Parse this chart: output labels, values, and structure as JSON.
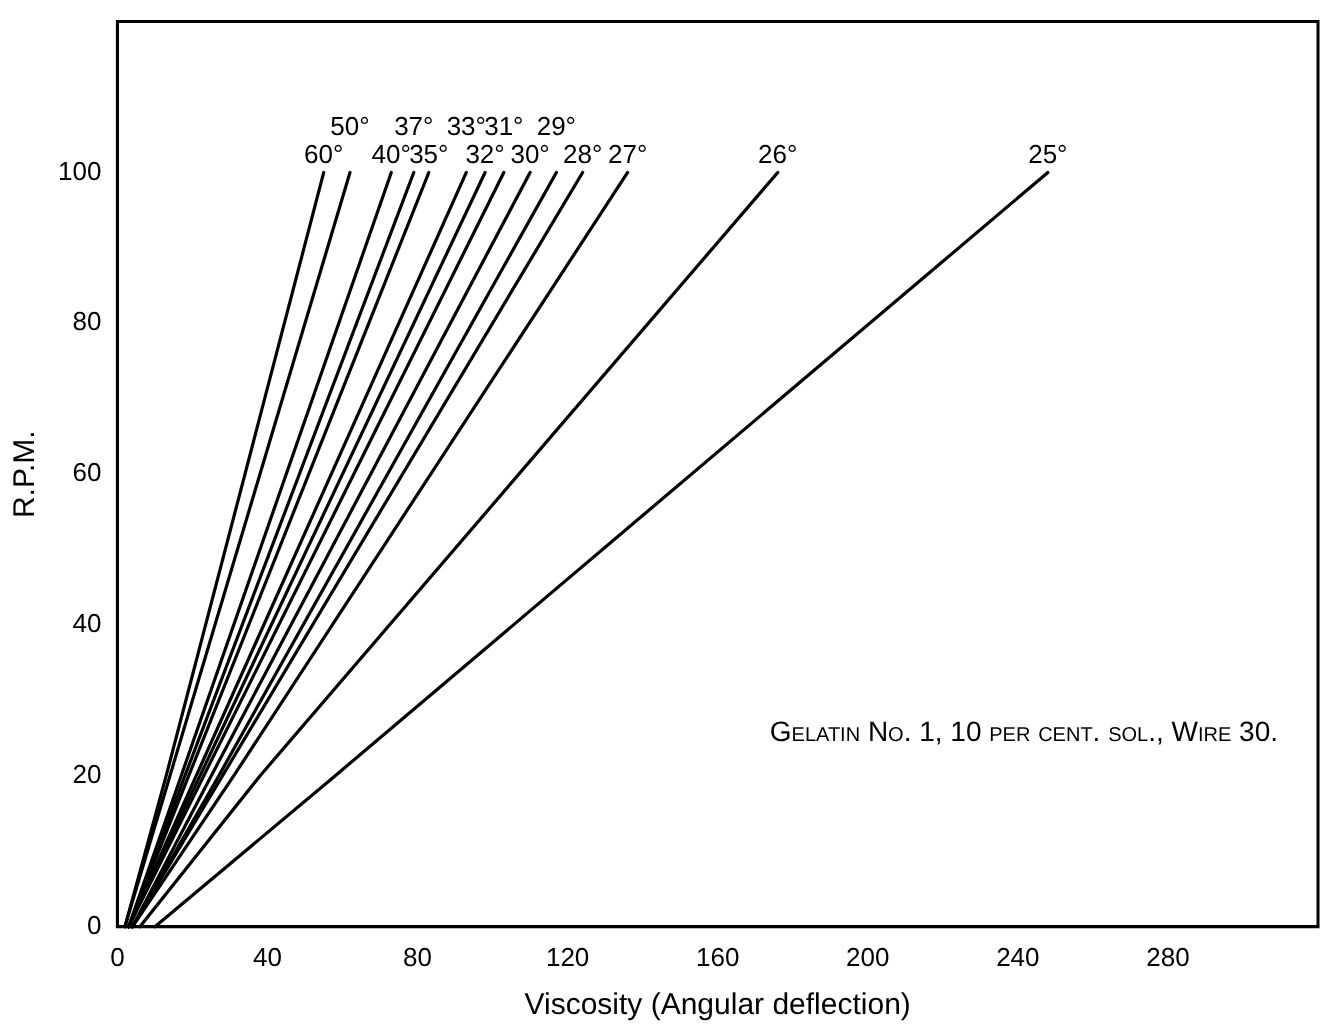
{
  "chart_data": {
    "type": "line",
    "xlabel": "Viscosity (Angular deflection)",
    "ylabel": "R.P.M.",
    "annotations": [
      "Gelatin No. 1, 10 per cent. sol., Wire 30."
    ],
    "xlim": [
      0,
      320
    ],
    "xticks": [
      0,
      40,
      80,
      120,
      160,
      200,
      240,
      280
    ],
    "ylim": [
      0,
      120
    ],
    "yticks": [
      0,
      20,
      40,
      60,
      80,
      100
    ],
    "grid": false,
    "legend": false,
    "marker": "none",
    "series": [
      {
        "name": "60°",
        "color": "#000000",
        "x": [
          2,
          13,
          55
        ],
        "values": [
          0,
          20,
          100
        ]
      },
      {
        "name": "50°",
        "color": "#000000",
        "x": [
          2,
          14,
          62
        ],
        "values": [
          0,
          20,
          100
        ]
      },
      {
        "name": "40°",
        "color": "#000000",
        "x": [
          3,
          17,
          73
        ],
        "values": [
          0,
          20,
          100
        ]
      },
      {
        "name": "37°",
        "color": "#000000",
        "x": [
          3,
          18,
          79
        ],
        "values": [
          0,
          20,
          100
        ]
      },
      {
        "name": "35°",
        "color": "#000000",
        "x": [
          3,
          19,
          83
        ],
        "values": [
          0,
          20,
          100
        ]
      },
      {
        "name": "33°",
        "color": "#000000",
        "x": [
          3,
          21,
          93
        ],
        "values": [
          0,
          20,
          100
        ]
      },
      {
        "name": "32°",
        "color": "#000000",
        "x": [
          3,
          22,
          98
        ],
        "values": [
          0,
          20,
          100
        ]
      },
      {
        "name": "31°",
        "color": "#000000",
        "x": [
          3,
          23,
          103
        ],
        "values": [
          0,
          20,
          100
        ]
      },
      {
        "name": "30°",
        "color": "#000000",
        "x": [
          4,
          25,
          110
        ],
        "values": [
          0,
          20,
          100
        ]
      },
      {
        "name": "29°",
        "color": "#000000",
        "x": [
          4,
          27,
          117
        ],
        "values": [
          0,
          20,
          100
        ]
      },
      {
        "name": "28°",
        "color": "#000000",
        "x": [
          4,
          28,
          124
        ],
        "values": [
          0,
          20,
          100
        ]
      },
      {
        "name": "27°",
        "color": "#000000",
        "x": [
          4,
          31,
          136
        ],
        "values": [
          0,
          20,
          100
        ]
      },
      {
        "name": "26°",
        "color": "#000000",
        "x": [
          6,
          38,
          176
        ],
        "values": [
          0,
          20,
          100
        ]
      },
      {
        "name": "25°",
        "color": "#000000",
        "x": [
          10,
          58,
          248
        ],
        "values": [
          0,
          20,
          100
        ]
      }
    ]
  }
}
